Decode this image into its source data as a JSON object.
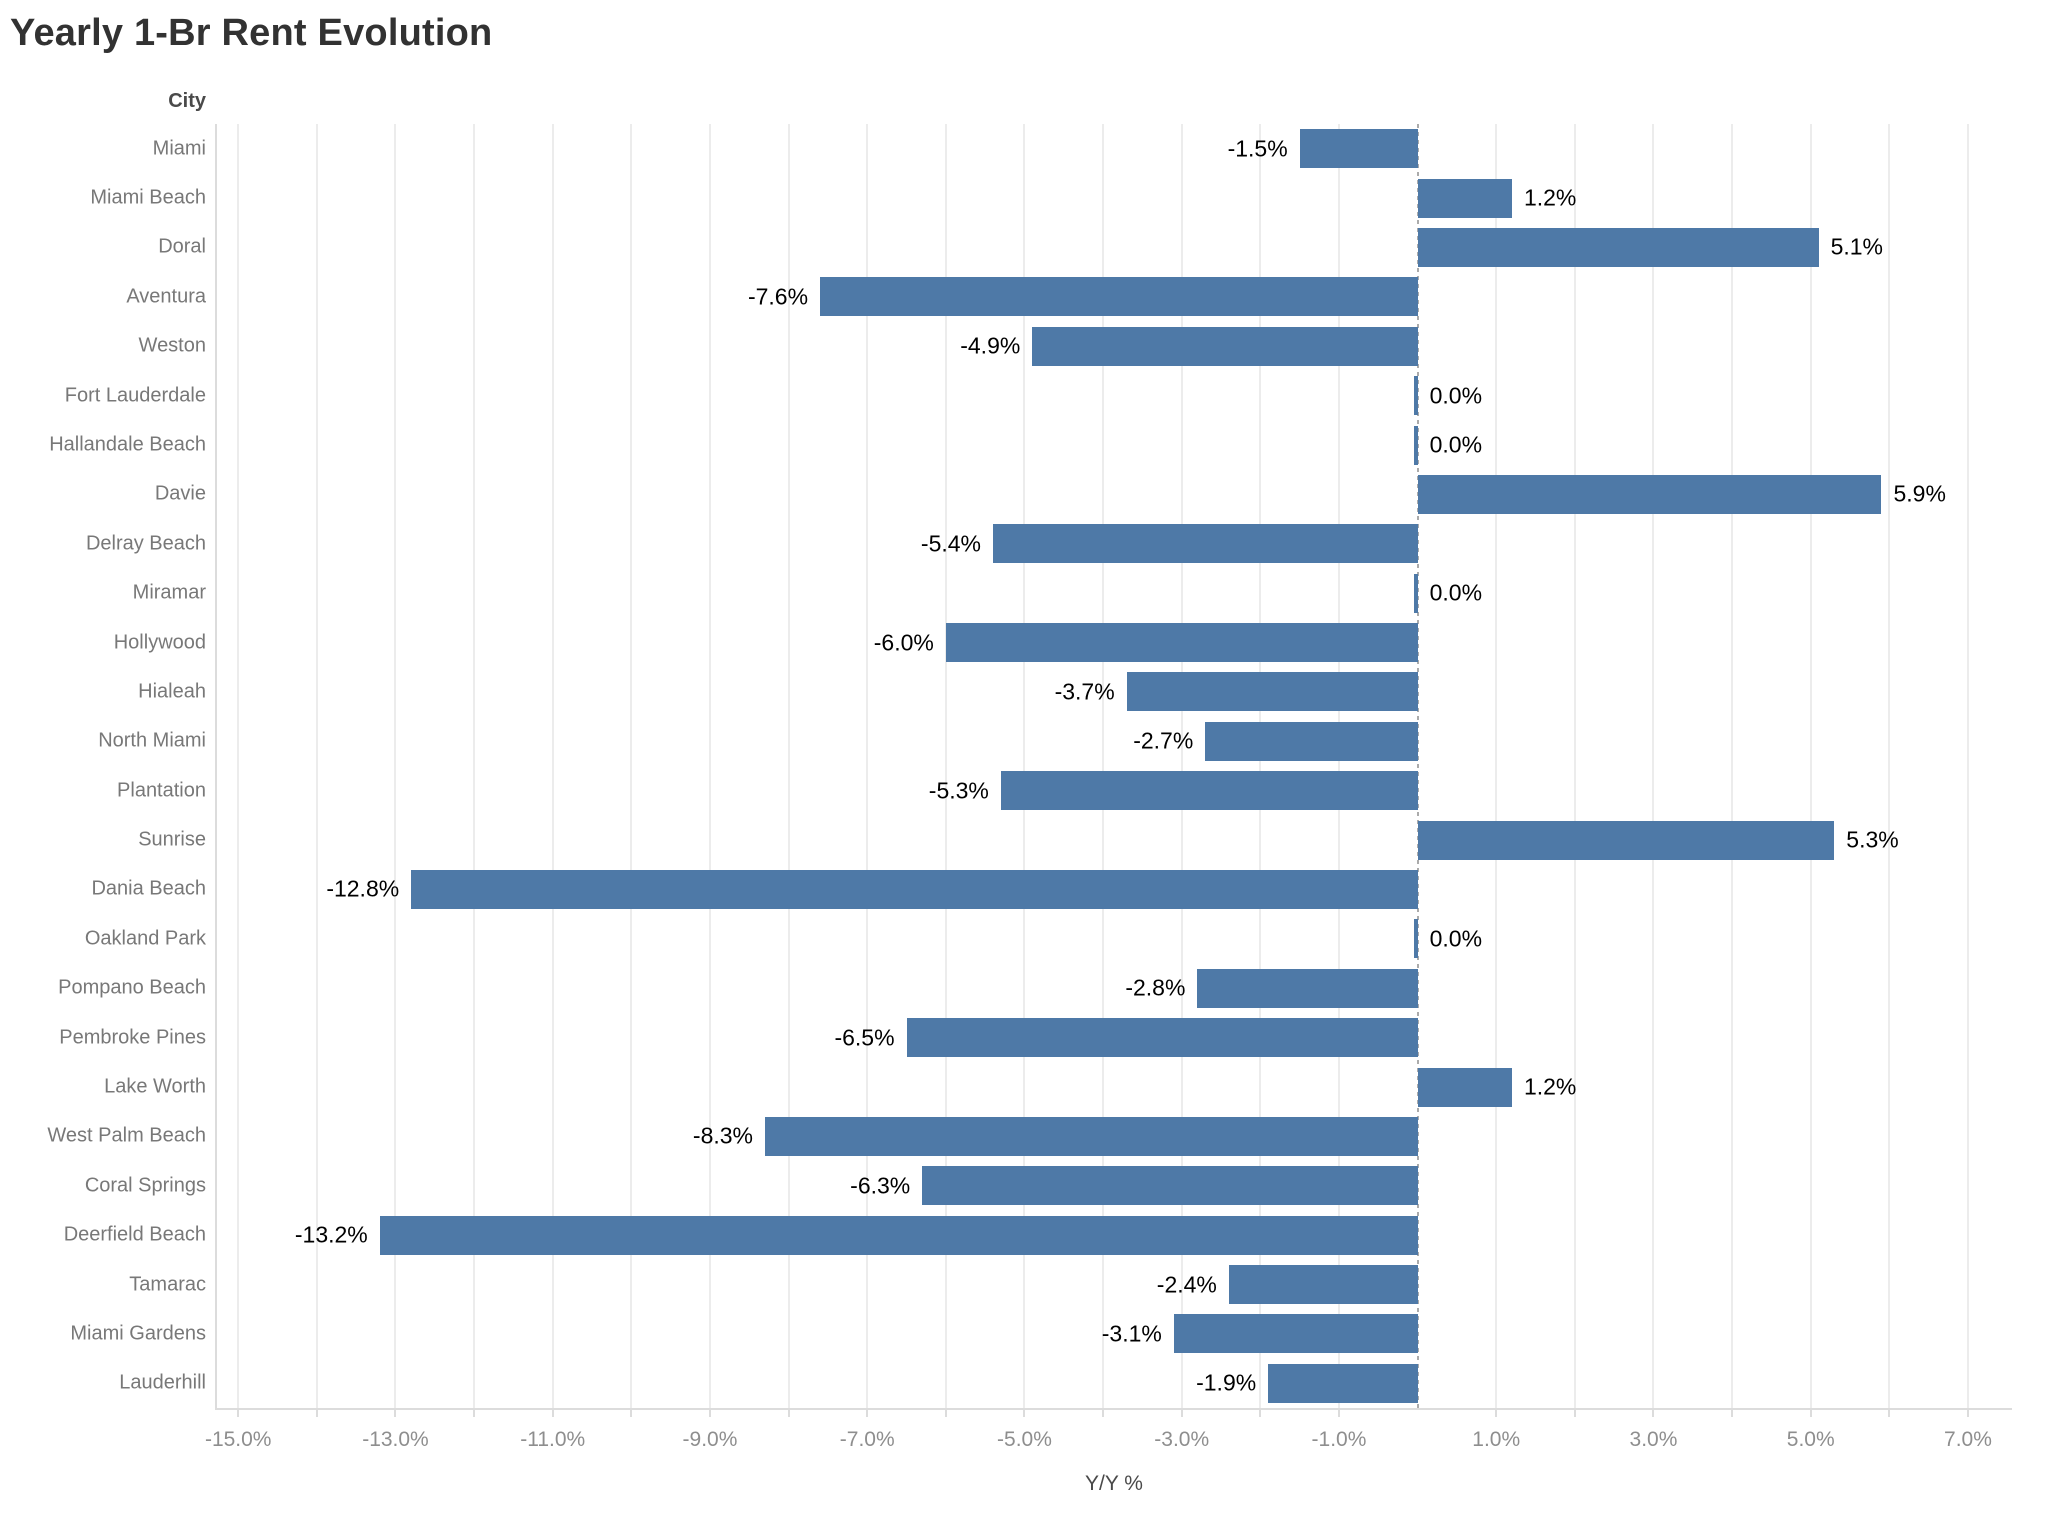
{
  "title": "Yearly 1-Br Rent Evolution",
  "chart_data": {
    "type": "bar",
    "orientation": "horizontal",
    "title": "Yearly 1-Br Rent Evolution",
    "row_header": "City",
    "xlabel": "Y/Y %",
    "categories": [
      "Miami",
      "Miami Beach",
      "Doral",
      "Aventura",
      "Weston",
      "Fort Lauderdale",
      "Hallandale Beach",
      "Davie",
      "Delray Beach",
      "Miramar",
      "Hollywood",
      "Hialeah",
      "North Miami",
      "Plantation",
      "Sunrise",
      "Dania Beach",
      "Oakland Park",
      "Pompano Beach",
      "Pembroke Pines",
      "Lake Worth",
      "West Palm Beach",
      "Coral Springs",
      "Deerfield Beach",
      "Tamarac",
      "Miami Gardens",
      "Lauderhill"
    ],
    "values": [
      -1.5,
      1.2,
      5.1,
      -7.6,
      -4.9,
      0.0,
      0.0,
      5.9,
      -5.4,
      0.0,
      -6.0,
      -3.7,
      -2.7,
      -5.3,
      5.3,
      -12.8,
      0.0,
      -2.8,
      -6.5,
      1.2,
      -8.3,
      -6.3,
      -13.2,
      -2.4,
      -3.1,
      -1.9
    ],
    "data_labels": [
      "-1.5%",
      "1.2%",
      "5.1%",
      "-7.6%",
      "-4.9%",
      "0.0%",
      "0.0%",
      "5.9%",
      "-5.4%",
      "0.0%",
      "-6.0%",
      "-3.7%",
      "-2.7%",
      "-5.3%",
      "5.3%",
      "-12.8%",
      "0.0%",
      "-2.8%",
      "-6.5%",
      "1.2%",
      "-8.3%",
      "-6.3%",
      "-13.2%",
      "-2.4%",
      "-3.1%",
      "-1.9%"
    ],
    "x_tick_values": [
      -15,
      -13,
      -11,
      -9,
      -7,
      -5,
      -3,
      -1,
      1,
      3,
      5,
      7
    ],
    "x_tick_labels": [
      "-15.0%",
      "-13.0%",
      "-11.0%",
      "-9.0%",
      "-7.0%",
      "-5.0%",
      "-3.0%",
      "-1.0%",
      "1.0%",
      "3.0%",
      "5.0%",
      "7.0%"
    ],
    "xlim": [
      -15.27,
      7.56
    ],
    "gridline_step": 1,
    "grid": "vertical",
    "zero_line": true,
    "legend": "none",
    "bar_color": "#4e79a7"
  }
}
